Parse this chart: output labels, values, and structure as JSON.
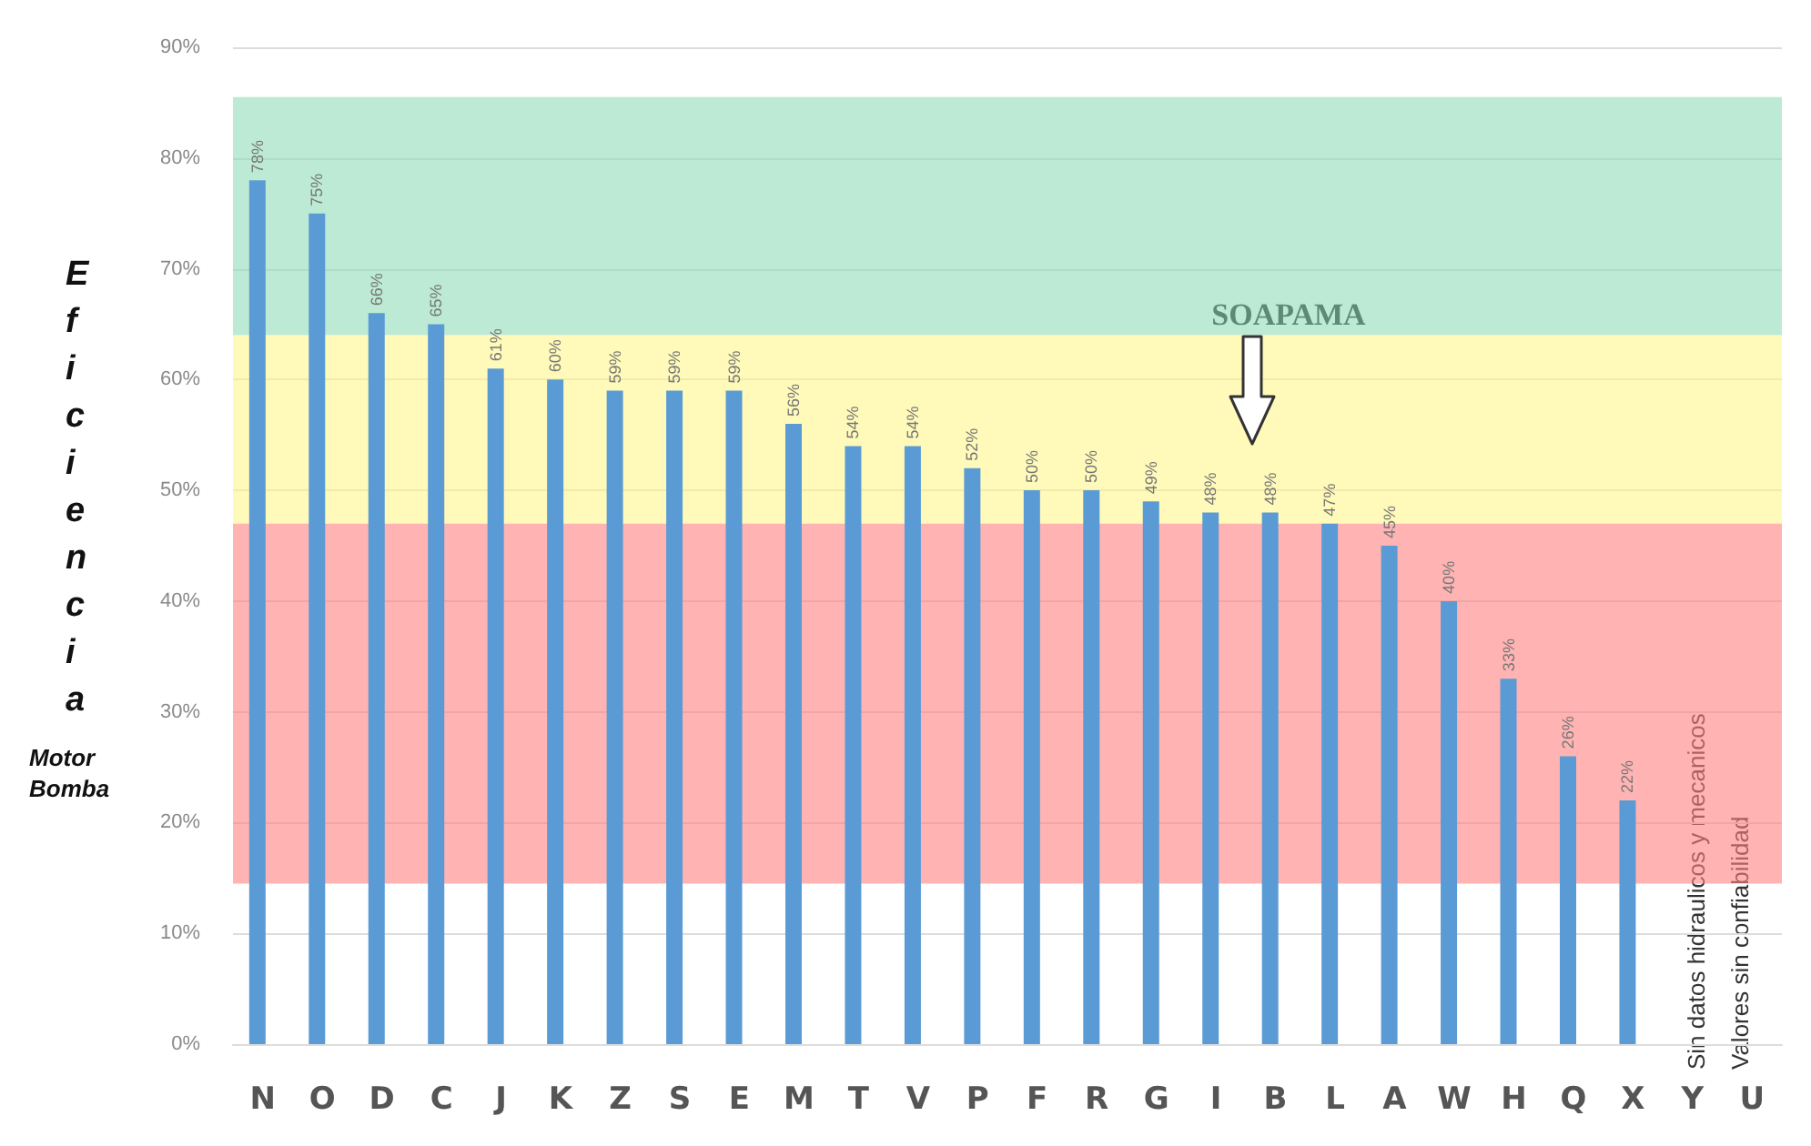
{
  "chart_data": {
    "type": "bar",
    "ylabel": "Eficiencia",
    "categories": [
      "N",
      "O",
      "D",
      "C",
      "J",
      "K",
      "Z",
      "S",
      "E",
      "M",
      "T",
      "V",
      "P",
      "F",
      "R",
      "G",
      "I",
      "B",
      "L",
      "A",
      "W",
      "H",
      "Q",
      "X",
      "Y",
      "U"
    ],
    "values": [
      78,
      75,
      66,
      65,
      61,
      60,
      59,
      59,
      59,
      56,
      54,
      54,
      52,
      50,
      50,
      49,
      48,
      48,
      47,
      45,
      40,
      33,
      26,
      22,
      null,
      null
    ],
    "value_labels": [
      "78%",
      "75%",
      "66%",
      "65%",
      "61%",
      "60%",
      "59%",
      "59%",
      "59%",
      "56%",
      "54%",
      "54%",
      "52%",
      "50%",
      "50%",
      "49%",
      "48%",
      "48%",
      "47%",
      "45%",
      "40%",
      "33%",
      "26%",
      "22%",
      null,
      null
    ],
    "color": "#5b9bd5",
    "ylim": [
      0,
      90
    ],
    "yticks": [
      {
        "value": 0,
        "label": "0%"
      },
      {
        "value": 10,
        "label": "10%"
      },
      {
        "value": 20,
        "label": "20%"
      },
      {
        "value": 30,
        "label": "30%"
      },
      {
        "value": 40,
        "label": "40%"
      },
      {
        "value": 50,
        "label": "50%"
      },
      {
        "value": 60,
        "label": "60%"
      },
      {
        "value": 70,
        "label": "70%"
      },
      {
        "value": 80,
        "label": "80%"
      },
      {
        "value": 90,
        "label": "90%"
      }
    ],
    "grid": "y",
    "bands": [
      {
        "axis": "y",
        "from": 64,
        "to": 85.5,
        "color": "#8fdcb8"
      },
      {
        "axis": "y",
        "from": 47,
        "to": 64,
        "color": "#fff78a"
      },
      {
        "axis": "y",
        "from": 14.5,
        "to": 47,
        "color": "#ff8080"
      }
    ],
    "annotations": [
      "Motor Bomba",
      "SOAPAMA",
      "Sin datos hidraulicos y mecanicos",
      "Valores sin confiabilidad"
    ]
  }
}
